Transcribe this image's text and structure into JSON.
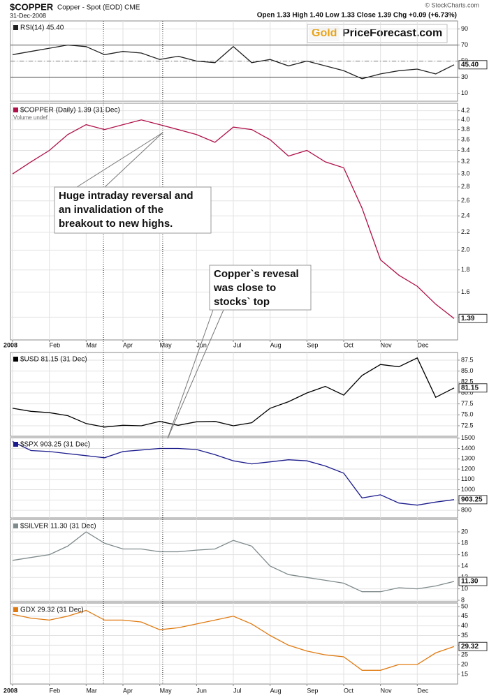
{
  "header": {
    "symbol": "$COPPER",
    "description": "Copper - Spot (EOD) CME",
    "date": "31-Dec-2008",
    "quote": "Open 1.33  High 1.40  Low 1.33  Close 1.39  Chg +0.09 (+6.73%)",
    "credit": "© StockCharts.com",
    "logo_gold": "Gold",
    "logo_rest": "PriceForecast.com"
  },
  "vlines": [
    2.47,
    4.08
  ],
  "chart_data": [
    {
      "type": "line",
      "title": "RSI(14) 45.40",
      "color": "#222222",
      "grid": true,
      "x": [
        0,
        0.5,
        1,
        1.5,
        2,
        2.5,
        3,
        3.5,
        4,
        4.5,
        5,
        5.5,
        6,
        6.5,
        7,
        7.5,
        8,
        8.5,
        9,
        9.5,
        10,
        10.5,
        11,
        11.5,
        12
      ],
      "values": [
        58,
        62,
        66,
        70,
        68,
        58,
        62,
        60,
        52,
        56,
        50,
        48,
        68,
        48,
        52,
        44,
        50,
        44,
        38,
        28,
        34,
        38,
        40,
        34,
        45.4
      ],
      "xlim": [
        0,
        12
      ],
      "ylim": [
        0,
        100
      ],
      "yticks": [
        10,
        30,
        50,
        70,
        90
      ],
      "ref_lines": [
        30,
        50,
        70
      ],
      "last_label": "45.40"
    },
    {
      "type": "line",
      "title": "$COPPER (Daily) 1.39 (31 Dec)",
      "subtitle": "Volume undef",
      "color": "#b0104a",
      "grid": true,
      "log": true,
      "x": [
        0,
        0.5,
        1,
        1.5,
        2,
        2.5,
        3,
        3.5,
        4,
        4.5,
        5,
        5.5,
        6,
        6.5,
        7,
        7.5,
        8,
        8.5,
        9,
        9.5,
        10,
        10.5,
        11,
        11.5,
        12
      ],
      "values": [
        3.0,
        3.2,
        3.4,
        3.7,
        3.9,
        3.8,
        3.9,
        4.0,
        3.9,
        3.8,
        3.7,
        3.55,
        3.85,
        3.8,
        3.6,
        3.3,
        3.4,
        3.2,
        3.1,
        2.5,
        1.9,
        1.75,
        1.65,
        1.5,
        1.39
      ],
      "xlim": [
        0,
        12
      ],
      "ylim": [
        1.24,
        4.37
      ],
      "yticks": [
        1.4,
        1.6,
        1.8,
        {
          "value": 2,
          "label": "2.0"
        },
        2.2,
        2.4,
        2.6,
        2.8,
        {
          "value": 3,
          "label": "3.0"
        },
        3.2,
        3.4,
        3.6,
        3.8,
        {
          "value": 4,
          "label": "4.0"
        },
        4.2
      ],
      "xticks": [
        {
          "value": 0,
          "label": "2008"
        },
        {
          "value": 1,
          "label": "Feb"
        },
        {
          "value": 2,
          "label": "Mar"
        },
        {
          "value": 3,
          "label": "Apr"
        },
        {
          "value": 4,
          "label": "May"
        },
        {
          "value": 5,
          "label": "Jun"
        },
        {
          "value": 6,
          "label": "Jul"
        },
        {
          "value": 7,
          "label": "Aug"
        },
        {
          "value": 8,
          "label": "Sep"
        },
        {
          "value": 9,
          "label": "Oct"
        },
        {
          "value": 10,
          "label": "Nov"
        },
        {
          "value": 11,
          "label": "Dec"
        }
      ],
      "last_label": "1.39",
      "annotations": [
        {
          "lines": [
            "Huge intraday reversal and",
            "an invalidation of the",
            "breakout to new highs."
          ]
        },
        {
          "lines": [
            "Copper`s revesal",
            "was close to",
            "stocks` top"
          ]
        }
      ]
    },
    {
      "type": "line",
      "title": "$USD 81.15 (31 Dec)",
      "color": "#000000",
      "grid": true,
      "x": [
        0,
        0.5,
        1,
        1.5,
        2,
        2.5,
        3,
        3.5,
        4,
        4.5,
        5,
        5.5,
        6,
        6.5,
        7,
        7.5,
        8,
        8.5,
        9,
        9.5,
        10,
        10.5,
        11,
        11.5,
        12
      ],
      "values": [
        76.5,
        75.8,
        75.5,
        74.8,
        73,
        72.2,
        72.6,
        72.5,
        73.5,
        72.6,
        73.4,
        73.5,
        72.5,
        73.2,
        76.5,
        78,
        80,
        81.5,
        79.5,
        84,
        86.5,
        86,
        88,
        79,
        81.15
      ],
      "xlim": [
        0,
        12
      ],
      "ylim": [
        70.1,
        89.25
      ],
      "yticks": [
        72.5,
        {
          "value": 75,
          "label": "75.0"
        },
        77.5,
        {
          "value": 80,
          "label": "80.0"
        },
        82.5,
        {
          "value": 85,
          "label": "85.0"
        },
        87.5
      ],
      "last_label": "81.15"
    },
    {
      "type": "line",
      "title": "$SPX 903.25 (31 Dec)",
      "color": "#1a1a8c",
      "grid": true,
      "x": [
        0,
        0.5,
        1,
        1.5,
        2,
        2.5,
        3,
        3.5,
        4,
        4.5,
        5,
        5.5,
        6,
        6.5,
        7,
        7.5,
        8,
        8.5,
        9,
        9.5,
        10,
        10.5,
        11,
        11.5,
        12
      ],
      "values": [
        1468,
        1380,
        1370,
        1350,
        1330,
        1310,
        1370,
        1385,
        1400,
        1400,
        1390,
        1340,
        1280,
        1250,
        1270,
        1290,
        1280,
        1230,
        1160,
        920,
        950,
        870,
        850,
        880,
        903.25
      ],
      "xlim": [
        0,
        12
      ],
      "ylim": [
        726,
        1505
      ],
      "yticks": [
        800,
        900,
        1000,
        1100,
        1200,
        1300,
        1400,
        1500
      ],
      "last_label": "903.25"
    },
    {
      "type": "line",
      "title": "$SILVER 11.30 (31 Dec)",
      "color": "#7f8a8c",
      "grid": true,
      "x": [
        0,
        0.5,
        1,
        1.5,
        2,
        2.5,
        3,
        3.5,
        4,
        4.5,
        5,
        5.5,
        6,
        6.5,
        7,
        7.5,
        8,
        8.5,
        9,
        9.5,
        10,
        10.5,
        11,
        11.5,
        12
      ],
      "values": [
        15,
        15.5,
        16,
        17.5,
        20,
        18,
        17,
        17,
        16.5,
        16.5,
        16.8,
        17,
        18.5,
        17.5,
        14,
        12.5,
        12,
        11.5,
        11,
        9.5,
        9.5,
        10.2,
        10,
        10.5,
        11.3
      ],
      "xlim": [
        0,
        12
      ],
      "ylim": [
        7.75,
        22.2
      ],
      "yticks": [
        8,
        10,
        12,
        14,
        16,
        18,
        20
      ],
      "last_label": "11.30"
    },
    {
      "type": "line",
      "title": "GDX 29.32 (31 Dec)",
      "color": "#e07a10",
      "grid": true,
      "x": [
        0,
        0.5,
        1,
        1.5,
        2,
        2.5,
        3,
        3.5,
        4,
        4.5,
        5,
        5.5,
        6,
        6.5,
        7,
        7.5,
        8,
        8.5,
        9,
        9.5,
        10,
        10.5,
        11,
        11.5,
        12
      ],
      "values": [
        46,
        44,
        43,
        45,
        48,
        43,
        43,
        42,
        38,
        39,
        41,
        43,
        45,
        41,
        35,
        30,
        27,
        25,
        24,
        17,
        17,
        20,
        20,
        26,
        29.32
      ],
      "xlim": [
        0,
        12
      ],
      "ylim": [
        9.9,
        51.8
      ],
      "yticks": [
        15,
        20,
        25,
        30,
        35,
        40,
        45,
        50
      ],
      "xticks": [
        {
          "value": 0,
          "label": "2008"
        },
        {
          "value": 1,
          "label": "Feb"
        },
        {
          "value": 2,
          "label": "Mar"
        },
        {
          "value": 3,
          "label": "Apr"
        },
        {
          "value": 4,
          "label": "May"
        },
        {
          "value": 5,
          "label": "Jun"
        },
        {
          "value": 6,
          "label": "Jul"
        },
        {
          "value": 7,
          "label": "Aug"
        },
        {
          "value": 8,
          "label": "Sep"
        },
        {
          "value": 9,
          "label": "Oct"
        },
        {
          "value": 10,
          "label": "Nov"
        },
        {
          "value": 11,
          "label": "Dec"
        }
      ],
      "last_label": "29.32"
    }
  ]
}
